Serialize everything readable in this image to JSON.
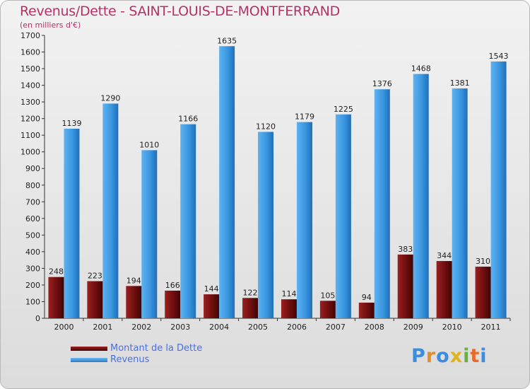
{
  "header": {
    "title": "Revenus/Dette - SAINT-LOUIS-DE-MONTFERRAND",
    "subtitle": "(en milliers d'€)"
  },
  "brand": {
    "logo_text": "Proxiti"
  },
  "colors": {
    "debt": "#7a1010",
    "revenue": "#3a96e0",
    "title": "#b5316a",
    "legend_text": "#4a6ee8"
  },
  "chart_data": {
    "type": "bar",
    "categories": [
      "2000",
      "2001",
      "2002",
      "2003",
      "2004",
      "2005",
      "2006",
      "2007",
      "2008",
      "2009",
      "2010",
      "2011"
    ],
    "series": [
      {
        "name": "Montant de la Dette",
        "values": [
          248,
          223,
          194,
          166,
          144,
          122,
          114,
          105,
          94,
          383,
          344,
          310
        ]
      },
      {
        "name": "Revenus",
        "values": [
          1139,
          1290,
          1010,
          1166,
          1635,
          1120,
          1179,
          1225,
          1376,
          1468,
          1381,
          1543
        ]
      }
    ],
    "ylim": [
      0,
      1700
    ],
    "yticks": [
      0,
      100,
      200,
      300,
      400,
      500,
      600,
      700,
      800,
      900,
      1000,
      1100,
      1200,
      1300,
      1400,
      1500,
      1600,
      1700
    ],
    "grid": false,
    "legend_position": "bottom-left",
    "xlabel": "",
    "ylabel": ""
  }
}
